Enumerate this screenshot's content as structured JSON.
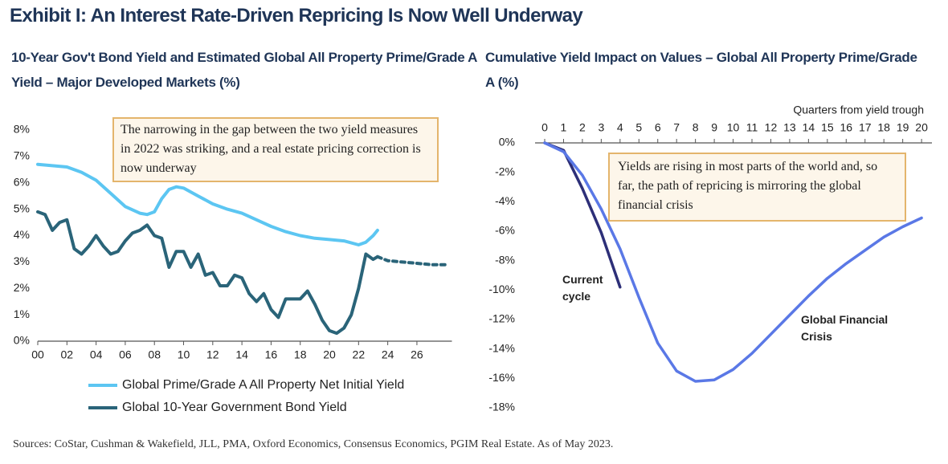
{
  "title": "Exhibit I: An Interest Rate-Driven Repricing Is Now Well Underway",
  "source": "Sources: CoStar, Cushman & Wakefield, JLL, PMA, Oxford Economics, Consensus Economics, PGIM Real Estate. As of May 2023.",
  "chart_data": [
    {
      "type": "line",
      "title": "10-Year Gov't Bond Yield and Estimated Global All Property Prime/Grade A Yield – Major Developed Markets (%)",
      "annotation": "The narrowing in the gap between the two yield measures in 2022 was striking, and a real estate pricing correction is now underway",
      "xlim": [
        2000,
        2028.4
      ],
      "xticks": [
        {
          "value": 2000,
          "label": "00"
        },
        {
          "value": 2002,
          "label": "02"
        },
        {
          "value": 2004,
          "label": "04"
        },
        {
          "value": 2006,
          "label": "06"
        },
        {
          "value": 2008,
          "label": "08"
        },
        {
          "value": 2010,
          "label": "10"
        },
        {
          "value": 2012,
          "label": "12"
        },
        {
          "value": 2014,
          "label": "14"
        },
        {
          "value": 2016,
          "label": "16"
        },
        {
          "value": 2018,
          "label": "18"
        },
        {
          "value": 2020,
          "label": "20"
        },
        {
          "value": 2022,
          "label": "22"
        },
        {
          "value": 2024,
          "label": "24"
        },
        {
          "value": 2026,
          "label": "26"
        }
      ],
      "ylim": [
        0,
        8
      ],
      "yticks": [
        {
          "value": 0,
          "label": "0%"
        },
        {
          "value": 1,
          "label": "1%"
        },
        {
          "value": 2,
          "label": "2%"
        },
        {
          "value": 3,
          "label": "3%"
        },
        {
          "value": 4,
          "label": "4%"
        },
        {
          "value": 5,
          "label": "5%"
        },
        {
          "value": 6,
          "label": "6%"
        },
        {
          "value": 7,
          "label": "7%"
        },
        {
          "value": 8,
          "label": "8%"
        }
      ],
      "grid": false,
      "legend": "bottom",
      "series": [
        {
          "name": "Global Prime/Grade A All Property Net Initial Yield",
          "color": "#5cc6f2",
          "style": "solid",
          "x": [
            2000,
            2001,
            2002,
            2003,
            2004,
            2005,
            2006,
            2007,
            2007.5,
            2008,
            2008.5,
            2009,
            2009.5,
            2010,
            2011,
            2012,
            2013,
            2014,
            2015,
            2016,
            2017,
            2018,
            2019,
            2020,
            2021,
            2022,
            2022.5,
            2023,
            2023.3
          ],
          "values": [
            6.7,
            6.65,
            6.6,
            6.4,
            6.1,
            5.6,
            5.1,
            4.85,
            4.8,
            4.9,
            5.4,
            5.75,
            5.85,
            5.8,
            5.5,
            5.2,
            5.0,
            4.85,
            4.6,
            4.35,
            4.15,
            4.0,
            3.9,
            3.85,
            3.8,
            3.65,
            3.75,
            4.0,
            4.2
          ]
        },
        {
          "name": "Global 10-Year Government Bond Yield",
          "color": "#2a6479",
          "style": "solid",
          "x": [
            2000,
            2000.5,
            2001,
            2001.5,
            2002,
            2002.5,
            2003,
            2003.5,
            2004,
            2004.5,
            2005,
            2005.5,
            2006,
            2006.5,
            2007,
            2007.5,
            2008,
            2008.5,
            2009,
            2009.5,
            2010,
            2010.5,
            2011,
            2011.5,
            2012,
            2012.5,
            2013,
            2013.5,
            2014,
            2014.5,
            2015,
            2015.5,
            2016,
            2016.5,
            2017,
            2017.5,
            2018,
            2018.5,
            2019,
            2019.5,
            2020,
            2020.5,
            2021,
            2021.5,
            2022,
            2022.5,
            2023,
            2023.3
          ],
          "values": [
            4.9,
            4.8,
            4.2,
            4.5,
            4.6,
            3.5,
            3.3,
            3.6,
            4.0,
            3.6,
            3.3,
            3.4,
            3.8,
            4.1,
            4.2,
            4.4,
            4.0,
            3.9,
            2.8,
            3.4,
            3.4,
            2.8,
            3.3,
            2.5,
            2.6,
            2.1,
            2.1,
            2.5,
            2.4,
            1.8,
            1.5,
            1.8,
            1.2,
            0.9,
            1.6,
            1.6,
            1.6,
            1.9,
            1.4,
            0.8,
            0.4,
            0.3,
            0.5,
            1.0,
            2.0,
            3.3,
            3.1,
            3.2
          ]
        },
        {
          "color": "#2a6479",
          "style": "dashed",
          "x": [
            2023.3,
            2024,
            2025,
            2026,
            2027,
            2028
          ],
          "values": [
            3.2,
            3.05,
            3.0,
            2.95,
            2.9,
            2.9
          ]
        }
      ]
    },
    {
      "type": "line",
      "title": "Cumulative Yield Impact on Values – Global All Property Prime/Grade A (%)",
      "xlabel": "Quarters from yield trough",
      "annotation": "Yields are rising in most parts of the world and, so far, the path of repricing is mirroring the global financial crisis",
      "xaxis_position": "top",
      "xlim": [
        0,
        20.55
      ],
      "xticks": [
        0,
        1,
        2,
        3,
        4,
        5,
        6,
        7,
        8,
        9,
        10,
        11,
        12,
        13,
        14,
        15,
        16,
        17,
        18,
        19,
        20
      ],
      "ylim": [
        -18,
        0
      ],
      "yticks": [
        {
          "value": 0,
          "label": "0%"
        },
        {
          "value": -2,
          "label": "-2%"
        },
        {
          "value": -4,
          "label": "-4%"
        },
        {
          "value": -6,
          "label": "-6%"
        },
        {
          "value": -8,
          "label": "-8%"
        },
        {
          "value": -10,
          "label": "-10%"
        },
        {
          "value": -12,
          "label": "-12%"
        },
        {
          "value": -14,
          "label": "-14%"
        },
        {
          "value": -16,
          "label": "-16%"
        },
        {
          "value": -18,
          "label": "-18%"
        }
      ],
      "grid": false,
      "legend": "inline",
      "series": [
        {
          "name": "Current cycle",
          "color": "#2d2f78",
          "style": "solid",
          "x": [
            0,
            1,
            2,
            3,
            4
          ],
          "values": [
            0,
            -0.5,
            -3.1,
            -6.1,
            -9.8
          ]
        },
        {
          "name": "Global Financial Crisis",
          "color": "#5a78e6",
          "style": "solid",
          "x": [
            0,
            1,
            2,
            3,
            4,
            5,
            6,
            7,
            8,
            9,
            10,
            11,
            12,
            13,
            14,
            15,
            16,
            17,
            18,
            19,
            20
          ],
          "values": [
            0,
            -0.6,
            -2.2,
            -4.5,
            -7.2,
            -10.5,
            -13.6,
            -15.5,
            -16.2,
            -16.1,
            -15.4,
            -14.3,
            -13.0,
            -11.7,
            -10.4,
            -9.2,
            -8.2,
            -7.3,
            -6.4,
            -5.7,
            -5.1
          ]
        }
      ]
    }
  ]
}
